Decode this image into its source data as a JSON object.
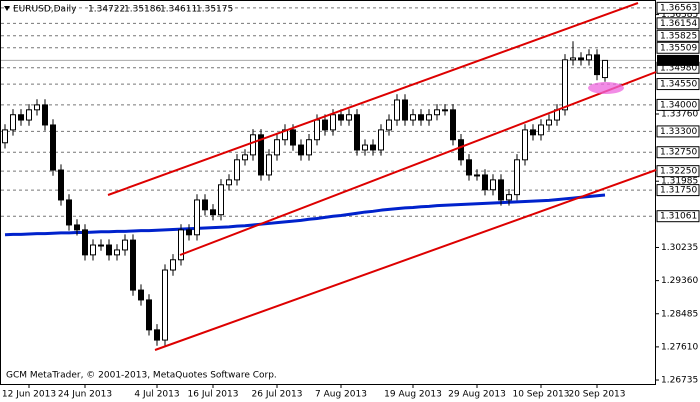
{
  "chart_data": {
    "type": "candlestick",
    "title": "EURUSD,Daily",
    "footer": "GCM MetaTrader, © 2001-2013, MetaQuotes Software Corp.",
    "categories": [
      null,
      null,
      null,
      "12 Jun 2013",
      null,
      null,
      null,
      null,
      null,
      null,
      "24 Jun 2013",
      null,
      null,
      null,
      null,
      null,
      null,
      null,
      null,
      "4 Jul 2013",
      null,
      null,
      null,
      null,
      null,
      null,
      "16 Jul 2013",
      null,
      null,
      null,
      null,
      null,
      null,
      null,
      "26 Jul 2013",
      null,
      null,
      null,
      null,
      null,
      null,
      null,
      "7 Aug 2013",
      null,
      null,
      null,
      null,
      null,
      null,
      null,
      null,
      "19 Aug 2013",
      null,
      null,
      null,
      null,
      null,
      null,
      null,
      "29 Aug 2013",
      null,
      null,
      null,
      null,
      null,
      null,
      null,
      "10 Sep 2013",
      null,
      null,
      null,
      null,
      null,
      null,
      "20 Sep 2013",
      null
    ],
    "open": [
      1.33,
      1.3334,
      1.3374,
      1.336,
      1.3387,
      1.34,
      1.3347,
      1.3228,
      1.3149,
      1.3083,
      1.307,
      1.3004,
      1.303,
      1.303,
      1.3004,
      1.3017,
      1.3043,
      1.2911,
      1.2885,
      1.2806,
      1.2779,
      1.2964,
      1.2991,
      1.307,
      1.3057,
      1.3149,
      1.3123,
      1.311,
      1.3189,
      1.3202,
      1.3255,
      1.3268,
      1.3321,
      1.3215,
      1.3268,
      1.3308,
      1.3334,
      1.3294,
      1.3268,
      1.3308,
      1.336,
      1.3334,
      1.3374,
      1.336,
      1.3374,
      1.3281,
      1.3294,
      1.3281,
      1.3334,
      1.336,
      1.3413,
      1.336,
      1.3374,
      1.336,
      1.3374,
      1.3387,
      1.3387,
      1.3308,
      1.3255,
      1.3215,
      1.3215,
      1.3176,
      1.3202,
      1.3149,
      1.3163,
      1.3255,
      1.3334,
      1.3321,
      1.3347,
      1.336,
      1.3387,
      1.3519,
      1.3524,
      1.3519,
      1.3532,
      1.34722
    ],
    "high": [
      1.3349,
      1.3389,
      1.3389,
      1.3402,
      1.3415,
      1.3415,
      1.3362,
      1.3243,
      1.3164,
      1.3098,
      1.3085,
      1.3045,
      1.3045,
      1.3045,
      1.3032,
      1.3058,
      1.3058,
      1.2926,
      1.29,
      1.2821,
      1.2979,
      1.3006,
      1.3085,
      1.3085,
      1.3164,
      1.3164,
      1.3138,
      1.3204,
      1.3217,
      1.327,
      1.3283,
      1.3336,
      1.3336,
      1.3283,
      1.3323,
      1.3349,
      1.3349,
      1.3309,
      1.3323,
      1.3375,
      1.3375,
      1.3389,
      1.3389,
      1.3389,
      1.3389,
      1.3309,
      1.3309,
      1.3349,
      1.3375,
      1.3428,
      1.3428,
      1.3389,
      1.3389,
      1.3389,
      1.3402,
      1.3402,
      1.3402,
      1.3323,
      1.327,
      1.323,
      1.323,
      1.3217,
      1.3217,
      1.3178,
      1.327,
      1.3349,
      1.3349,
      1.3362,
      1.3375,
      1.3402,
      1.3534,
      1.3568,
      1.3539,
      1.3547,
      1.3547,
      1.35186
    ],
    "low": [
      1.3285,
      1.3319,
      1.3345,
      1.3345,
      1.3372,
      1.3332,
      1.3213,
      1.3134,
      1.3068,
      1.3055,
      1.2989,
      1.2989,
      1.3015,
      1.2989,
      1.2989,
      1.3002,
      1.2896,
      1.287,
      1.2791,
      1.2764,
      1.2764,
      1.2949,
      1.2976,
      1.3042,
      1.3042,
      1.3108,
      1.3095,
      1.3095,
      1.3174,
      1.3187,
      1.324,
      1.3253,
      1.32,
      1.32,
      1.3253,
      1.3293,
      1.3279,
      1.3253,
      1.3253,
      1.3293,
      1.3319,
      1.3319,
      1.3345,
      1.3345,
      1.3266,
      1.3266,
      1.3266,
      1.3266,
      1.3319,
      1.3345,
      1.3345,
      1.3345,
      1.3345,
      1.3345,
      1.3359,
      1.3372,
      1.3293,
      1.324,
      1.32,
      1.32,
      1.3161,
      1.3161,
      1.3134,
      1.3134,
      1.3148,
      1.324,
      1.3306,
      1.3306,
      1.3332,
      1.3345,
      1.3372,
      1.3504,
      1.3504,
      1.3504,
      1.3465,
      1.34611
    ],
    "close": [
      1.3334,
      1.3374,
      1.336,
      1.3387,
      1.34,
      1.3347,
      1.3228,
      1.3149,
      1.3083,
      1.307,
      1.3004,
      1.303,
      1.303,
      1.3004,
      1.3017,
      1.3043,
      1.2911,
      1.2885,
      1.2806,
      1.2779,
      1.2964,
      1.2991,
      1.307,
      1.3057,
      1.3149,
      1.3123,
      1.311,
      1.3189,
      1.3202,
      1.3255,
      1.3268,
      1.3321,
      1.3215,
      1.3268,
      1.3308,
      1.3334,
      1.3294,
      1.3268,
      1.3308,
      1.336,
      1.3334,
      1.3374,
      1.336,
      1.3374,
      1.3281,
      1.3294,
      1.3281,
      1.3334,
      1.336,
      1.3413,
      1.336,
      1.3374,
      1.336,
      1.3374,
      1.3387,
      1.3387,
      1.3308,
      1.3255,
      1.3215,
      1.3215,
      1.3176,
      1.3202,
      1.3149,
      1.3163,
      1.3255,
      1.3334,
      1.3321,
      1.3347,
      1.336,
      1.3387,
      1.3519,
      1.3524,
      1.3519,
      1.3532,
      1.348,
      1.35175
    ],
    "ma": [
      1.3057,
      1.3058,
      1.3058,
      1.3059,
      1.306,
      1.306,
      1.3061,
      1.3062,
      1.3062,
      1.3063,
      1.3063,
      1.3064,
      1.3065,
      1.3065,
      1.3066,
      1.3066,
      1.3067,
      1.3068,
      1.3068,
      1.3069,
      1.307,
      1.3071,
      1.3072,
      1.3073,
      1.3074,
      1.3075,
      1.3076,
      1.3077,
      1.3078,
      1.308,
      1.3081,
      1.3083,
      1.3085,
      1.3087,
      1.3089,
      1.3091,
      1.3093,
      1.3095,
      1.3098,
      1.31,
      1.3103,
      1.3106,
      1.3108,
      1.3111,
      1.3114,
      1.3117,
      1.3119,
      1.3122,
      1.3124,
      1.3126,
      1.3128,
      1.3129,
      1.3131,
      1.3132,
      1.3134,
      1.3135,
      1.3136,
      1.3137,
      1.3138,
      1.3139,
      1.314,
      1.3141,
      1.3142,
      1.3143,
      1.3144,
      1.3145,
      1.3146,
      1.3147,
      1.3148,
      1.315,
      1.3152,
      1.3154,
      1.3156,
      1.3158,
      1.316,
      1.3162
    ],
    "up_color": "#ffffff",
    "down_color": "#000000",
    "ma_color": "#0022cc",
    "ylim": [
      1.2663,
      1.3677
    ],
    "yticks": [
      1.26735,
      {
        "value": 1.2761,
        "label": "1.27610"
      },
      1.28485,
      {
        "value": 1.2936,
        "label": "1.29360"
      },
      1.30235,
      1.31985,
      {
        "value": 1.3376,
        "label": "1.33760"
      },
      1.36385
    ],
    "levels": [
      1.36563,
      1.36154,
      1.35825,
      1.35509,
      {
        "value": 1.3498,
        "label": "1.34980"
      },
      {
        "value": 1.3455,
        "label": "1.34550"
      },
      {
        "value": 1.34,
        "label": "1.34000"
      },
      {
        "value": 1.333,
        "label": "1.33300"
      },
      {
        "value": 1.3275,
        "label": "1.32750"
      },
      {
        "value": 1.3225,
        "label": "1.32250"
      },
      {
        "value": 1.3175,
        "label": "1.31750"
      },
      1.31061
    ]
  }
}
